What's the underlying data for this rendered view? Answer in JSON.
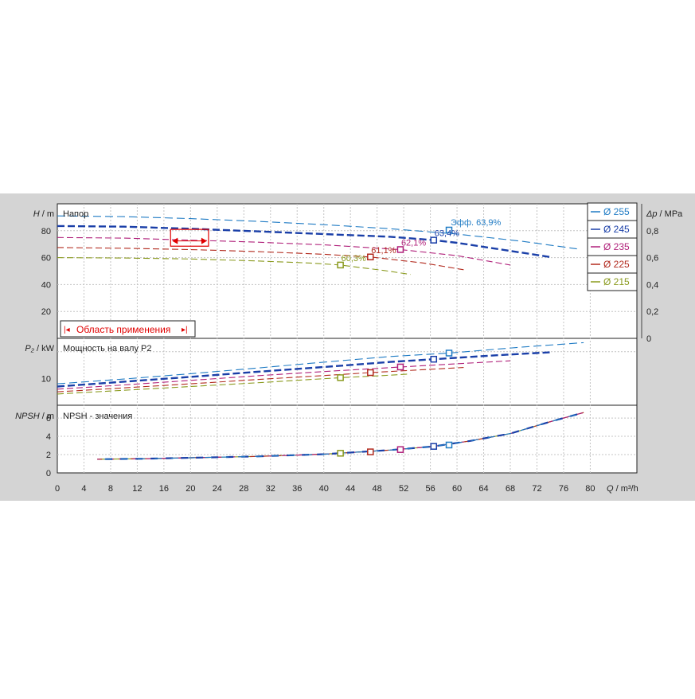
{
  "chart_data": [
    {
      "type": "line",
      "title": "Напор",
      "ylabel_left_var": "H",
      "ylabel_left_unit": "m",
      "ylabel_right_var": "Δp",
      "ylabel_right_unit": "MPa",
      "ylim": [
        0,
        100
      ],
      "yticks": [
        20,
        40,
        60,
        80
      ],
      "ylim_right": [
        0,
        1.0
      ],
      "yticks_right": [
        "0",
        "0,2",
        "0,4",
        "0,6",
        "0,8"
      ],
      "application_range_label": "Область применения",
      "series": [
        {
          "name": "Ø 255",
          "color": "#1f7bc4",
          "x": [
            0,
            10,
            20,
            30,
            40,
            50,
            60,
            70,
            78
          ],
          "y": [
            91,
            90.5,
            89,
            87,
            84.5,
            81.5,
            77.5,
            72,
            66.5
          ]
        },
        {
          "name": "Ø 245",
          "color": "#1a3fa8",
          "x": [
            0,
            10,
            20,
            30,
            40,
            50,
            56.5,
            60,
            74
          ],
          "y": [
            83.5,
            83,
            81.5,
            79.5,
            77.5,
            75.5,
            73,
            71,
            60.5
          ]
        },
        {
          "name": "Ø 235",
          "color": "#b0207a",
          "x": [
            0,
            10,
            20,
            30,
            40,
            51.5,
            60,
            68
          ],
          "y": [
            75,
            74.5,
            73,
            71.5,
            69.5,
            66,
            61.5,
            54.5
          ]
        },
        {
          "name": "Ø 225",
          "color": "#b22a1e",
          "x": [
            0,
            10,
            20,
            30,
            40,
            47,
            55,
            61
          ],
          "y": [
            67.5,
            67,
            66,
            64.5,
            62.5,
            60.5,
            56,
            51
          ]
        },
        {
          "name": "Ø 215",
          "color": "#8a9a1e",
          "x": [
            0,
            10,
            20,
            30,
            38,
            42.5,
            49,
            53
          ],
          "y": [
            60,
            59.7,
            59,
            57.5,
            56,
            54.5,
            50.5,
            47.5
          ]
        }
      ],
      "annotations": [
        {
          "text": "Эфф.  63,9%",
          "x": 58.8,
          "y": 80.5,
          "color": "#1f7bc4"
        },
        {
          "text": "63,4%",
          "x": 56.5,
          "y": 73,
          "color": "#1a3fa8"
        },
        {
          "text": "62,1%",
          "x": 51.5,
          "y": 66,
          "color": "#b0207a"
        },
        {
          "text": "61,1%",
          "x": 47,
          "y": 60.5,
          "color": "#b22a1e"
        },
        {
          "text": "60,3%",
          "x": 42.5,
          "y": 54.5,
          "color": "#8a9a1e"
        }
      ]
    },
    {
      "type": "line",
      "title": "Мощность на валу P2",
      "ylabel_left_var": "P₂",
      "ylabel_left_unit": "kW",
      "ylim": [
        0,
        25
      ],
      "yticks": [
        10
      ],
      "series": [
        {
          "name": "Ø 255",
          "x": [
            0,
            10,
            20,
            30,
            40,
            50,
            58.8,
            70,
            79
          ],
          "y": [
            8,
            9.8,
            11.8,
            13.9,
            16.1,
            18.2,
            19.5,
            21.8,
            23.4
          ]
        },
        {
          "name": "Ø 245",
          "x": [
            0,
            10,
            20,
            30,
            40,
            50,
            56.5,
            66,
            74
          ],
          "y": [
            7,
            8.8,
            10.6,
            12.5,
            14.3,
            16.2,
            17.2,
            18.7,
            19.8
          ]
        },
        {
          "name": "Ø 235",
          "x": [
            0,
            10,
            20,
            30,
            40,
            51.5,
            60,
            68
          ],
          "y": [
            6,
            7.6,
            9.3,
            11,
            12.6,
            14.3,
            15.5,
            16.6
          ]
        },
        {
          "name": "Ø 225",
          "x": [
            0,
            10,
            20,
            30,
            40,
            47,
            55,
            61
          ],
          "y": [
            5,
            6.5,
            8,
            9.6,
            11.1,
            12.2,
            13.3,
            14.1
          ]
        },
        {
          "name": "Ø 215",
          "x": [
            0,
            10,
            20,
            30,
            42.5,
            49,
            53
          ],
          "y": [
            4.2,
            5.6,
            7,
            8.4,
            10.3,
            11.1,
            11.7
          ]
        }
      ],
      "markers": [
        {
          "series": "Ø 255",
          "x": 58.8,
          "y": 19.5
        },
        {
          "series": "Ø 245",
          "x": 56.5,
          "y": 17.2
        },
        {
          "series": "Ø 235",
          "x": 51.5,
          "y": 14.3
        },
        {
          "series": "Ø 225",
          "x": 47,
          "y": 12.2
        },
        {
          "series": "Ø 215",
          "x": 42.5,
          "y": 10.3
        }
      ]
    },
    {
      "type": "line",
      "title": "NPSH - значения",
      "ylabel_left_var": "NPSH",
      "ylabel_left_unit": "m",
      "ylim": [
        0,
        7.4
      ],
      "yticks": [
        0,
        2,
        4,
        6
      ],
      "series": [
        {
          "name": "NPSH",
          "x": [
            6,
            13,
            20,
            30,
            40,
            50,
            56.5,
            62,
            68,
            74,
            79
          ],
          "y": [
            1.5,
            1.55,
            1.65,
            1.8,
            2.05,
            2.5,
            2.9,
            3.5,
            4.3,
            5.6,
            6.6
          ]
        }
      ],
      "markers": [
        {
          "series": "Ø 215",
          "x": 42.5,
          "y": 2.15
        },
        {
          "series": "Ø 225",
          "x": 47,
          "y": 2.3
        },
        {
          "series": "Ø 235",
          "x": 51.5,
          "y": 2.55
        },
        {
          "series": "Ø 245",
          "x": 56.5,
          "y": 2.9
        },
        {
          "series": "Ø 255",
          "x": 58.8,
          "y": 3.05
        }
      ],
      "xlabel_var": "Q",
      "xlabel_unit": "m³/h",
      "xlim": [
        0,
        87
      ],
      "xticks": [
        0,
        4,
        8,
        12,
        16,
        20,
        24,
        28,
        32,
        36,
        40,
        44,
        48,
        52,
        56,
        60,
        64,
        68,
        72,
        76,
        80
      ]
    }
  ],
  "legend_position": "right"
}
